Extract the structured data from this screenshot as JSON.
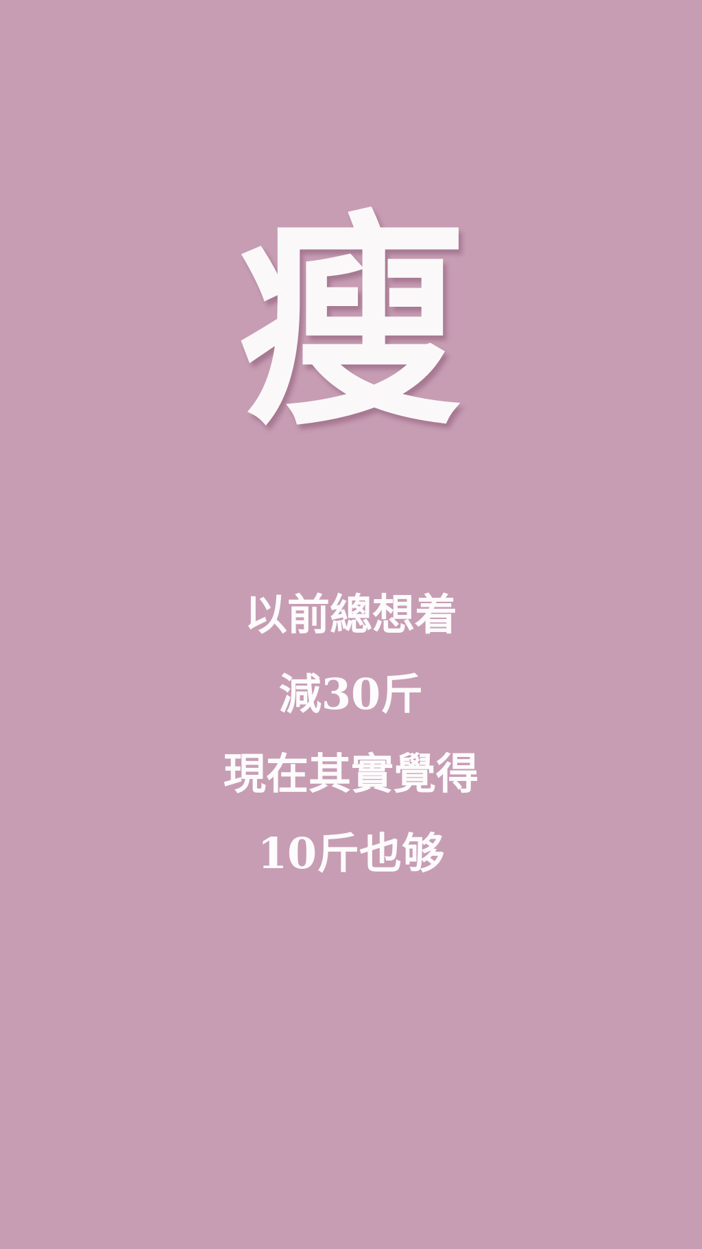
{
  "title": "瘦",
  "lines": [
    "以前總想着",
    "減30斤",
    "現在其實覺得",
    "10斤也够"
  ],
  "colors": {
    "background": "#c79db4",
    "text": "#fbf8f9"
  }
}
